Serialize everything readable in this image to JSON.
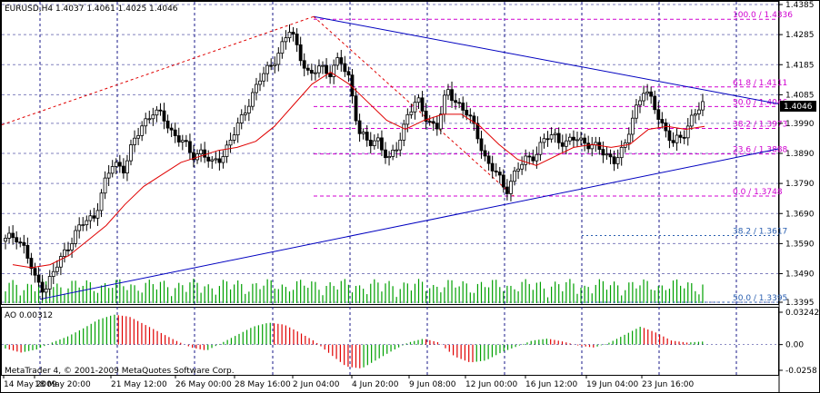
{
  "chart_data": [
    {
      "type": "candlestick",
      "title": "EURUSD,H4  1.4037 1.4061 1.4025 1.4046",
      "symbol": "EURUSD",
      "timeframe": "H4",
      "ohlc": {
        "open": 1.4037,
        "high": 1.4061,
        "low": 1.4025,
        "close": 1.4046
      },
      "current_price": "1.4046",
      "y_ticks": [
        "1.4385",
        "1.4285",
        "1.4185",
        "1.4085",
        "1.3990",
        "1.3890",
        "1.3790",
        "1.3690",
        "1.3590",
        "1.3490",
        "1.3395"
      ],
      "x_ticks": [
        "14 May 2009",
        "18 May 20:00",
        "21 May 12:00",
        "26 May 00:00",
        "28 May 16:00",
        "2 Jun 04:00",
        "4 Jun 20:00",
        "9 Jun 08:00",
        "12 Jun 00:00",
        "16 Jun 12:00",
        "19 Jun 04:00",
        "23 Jun 16:00"
      ],
      "ylim": [
        1.3395,
        1.4385
      ],
      "close_path": [
        1.36,
        1.362,
        1.357,
        1.347,
        1.344,
        1.35,
        1.356,
        1.362,
        1.366,
        1.368,
        1.378,
        1.386,
        1.384,
        1.392,
        1.399,
        1.403,
        1.401,
        1.396,
        1.393,
        1.388,
        1.39,
        1.385,
        1.388,
        1.394,
        1.4,
        1.408,
        1.414,
        1.418,
        1.424,
        1.43,
        1.422,
        1.414,
        1.418,
        1.416,
        1.42,
        1.414,
        1.396,
        1.392,
        1.394,
        1.386,
        1.392,
        1.403,
        1.406,
        1.4,
        1.398,
        1.41,
        1.406,
        1.402,
        1.396,
        1.386,
        1.382,
        1.377,
        1.383,
        1.387,
        1.389,
        1.394,
        1.395,
        1.392,
        1.394,
        1.393,
        1.391,
        1.389,
        1.387,
        1.39,
        1.403,
        1.41,
        1.405,
        1.398,
        1.392,
        1.395,
        1.402,
        1.4046
      ],
      "ma_path": [
        1.352,
        1.351,
        1.352,
        1.355,
        1.36,
        1.365,
        1.372,
        1.378,
        1.382,
        1.386,
        1.388,
        1.39,
        1.391,
        1.393,
        1.398,
        1.405,
        1.412,
        1.416,
        1.412,
        1.406,
        1.4,
        1.397,
        1.4,
        1.402,
        1.402,
        1.398,
        1.392,
        1.387,
        1.385,
        1.388,
        1.391,
        1.392,
        1.391,
        1.392,
        1.397,
        1.398,
        1.397,
        1.398
      ],
      "fibonacci": [
        {
          "label": "100.0 / 1.4336",
          "value": 1.4336
        },
        {
          "label": "61.8 / 1.4111",
          "value": 1.4111
        },
        {
          "label": "50.0 / 1.4046",
          "value": 1.4046
        },
        {
          "label": "38.2 / 1.3973",
          "value": 1.3973
        },
        {
          "label": "23.6 / 1.3888",
          "value": 1.3888
        },
        {
          "label": "0.0 / 1.3748",
          "value": 1.3748
        }
      ],
      "fibonacci_outer": [
        {
          "label": "38.2 / 1.3617",
          "value": 1.3617
        },
        {
          "label": "50.0 / 1.3395",
          "value": 1.3395
        }
      ],
      "colors": {
        "bull": "#000000",
        "bear": "#000000",
        "ma": "#e00000",
        "trend": "#0000c0",
        "fib": "#d000d0",
        "fib_outer": "#2a5fb0",
        "volume": "#00a000",
        "grid": "#1a1a8a"
      }
    },
    {
      "type": "bar",
      "title": "AO 0.00312",
      "y_ticks": [
        "0.03242",
        "0.00",
        "-0.0258"
      ],
      "ylim": [
        -0.0258,
        0.03242
      ],
      "values_path": [
        -0.004,
        -0.008,
        -0.005,
        0.002,
        0.008,
        0.016,
        0.025,
        0.03,
        0.028,
        0.02,
        0.012,
        0.004,
        -0.003,
        -0.006,
        0.002,
        0.01,
        0.018,
        0.022,
        0.02,
        0.012,
        0.003,
        -0.01,
        -0.022,
        -0.024,
        -0.015,
        -0.006,
        0.002,
        0.006,
        0.002,
        -0.012,
        -0.018,
        -0.016,
        -0.008,
        -0.002,
        0.004,
        0.006,
        0.003,
        -0.001,
        -0.003,
        0.002,
        0.01,
        0.018,
        0.012,
        0.004,
        0.002,
        0.003
      ],
      "colors": {
        "up": "#00a000",
        "down": "#e00000"
      }
    }
  ],
  "footer": {
    "copyright": "MetaTrader 4, © 2001-2009 MetaQuotes Software Corp."
  }
}
